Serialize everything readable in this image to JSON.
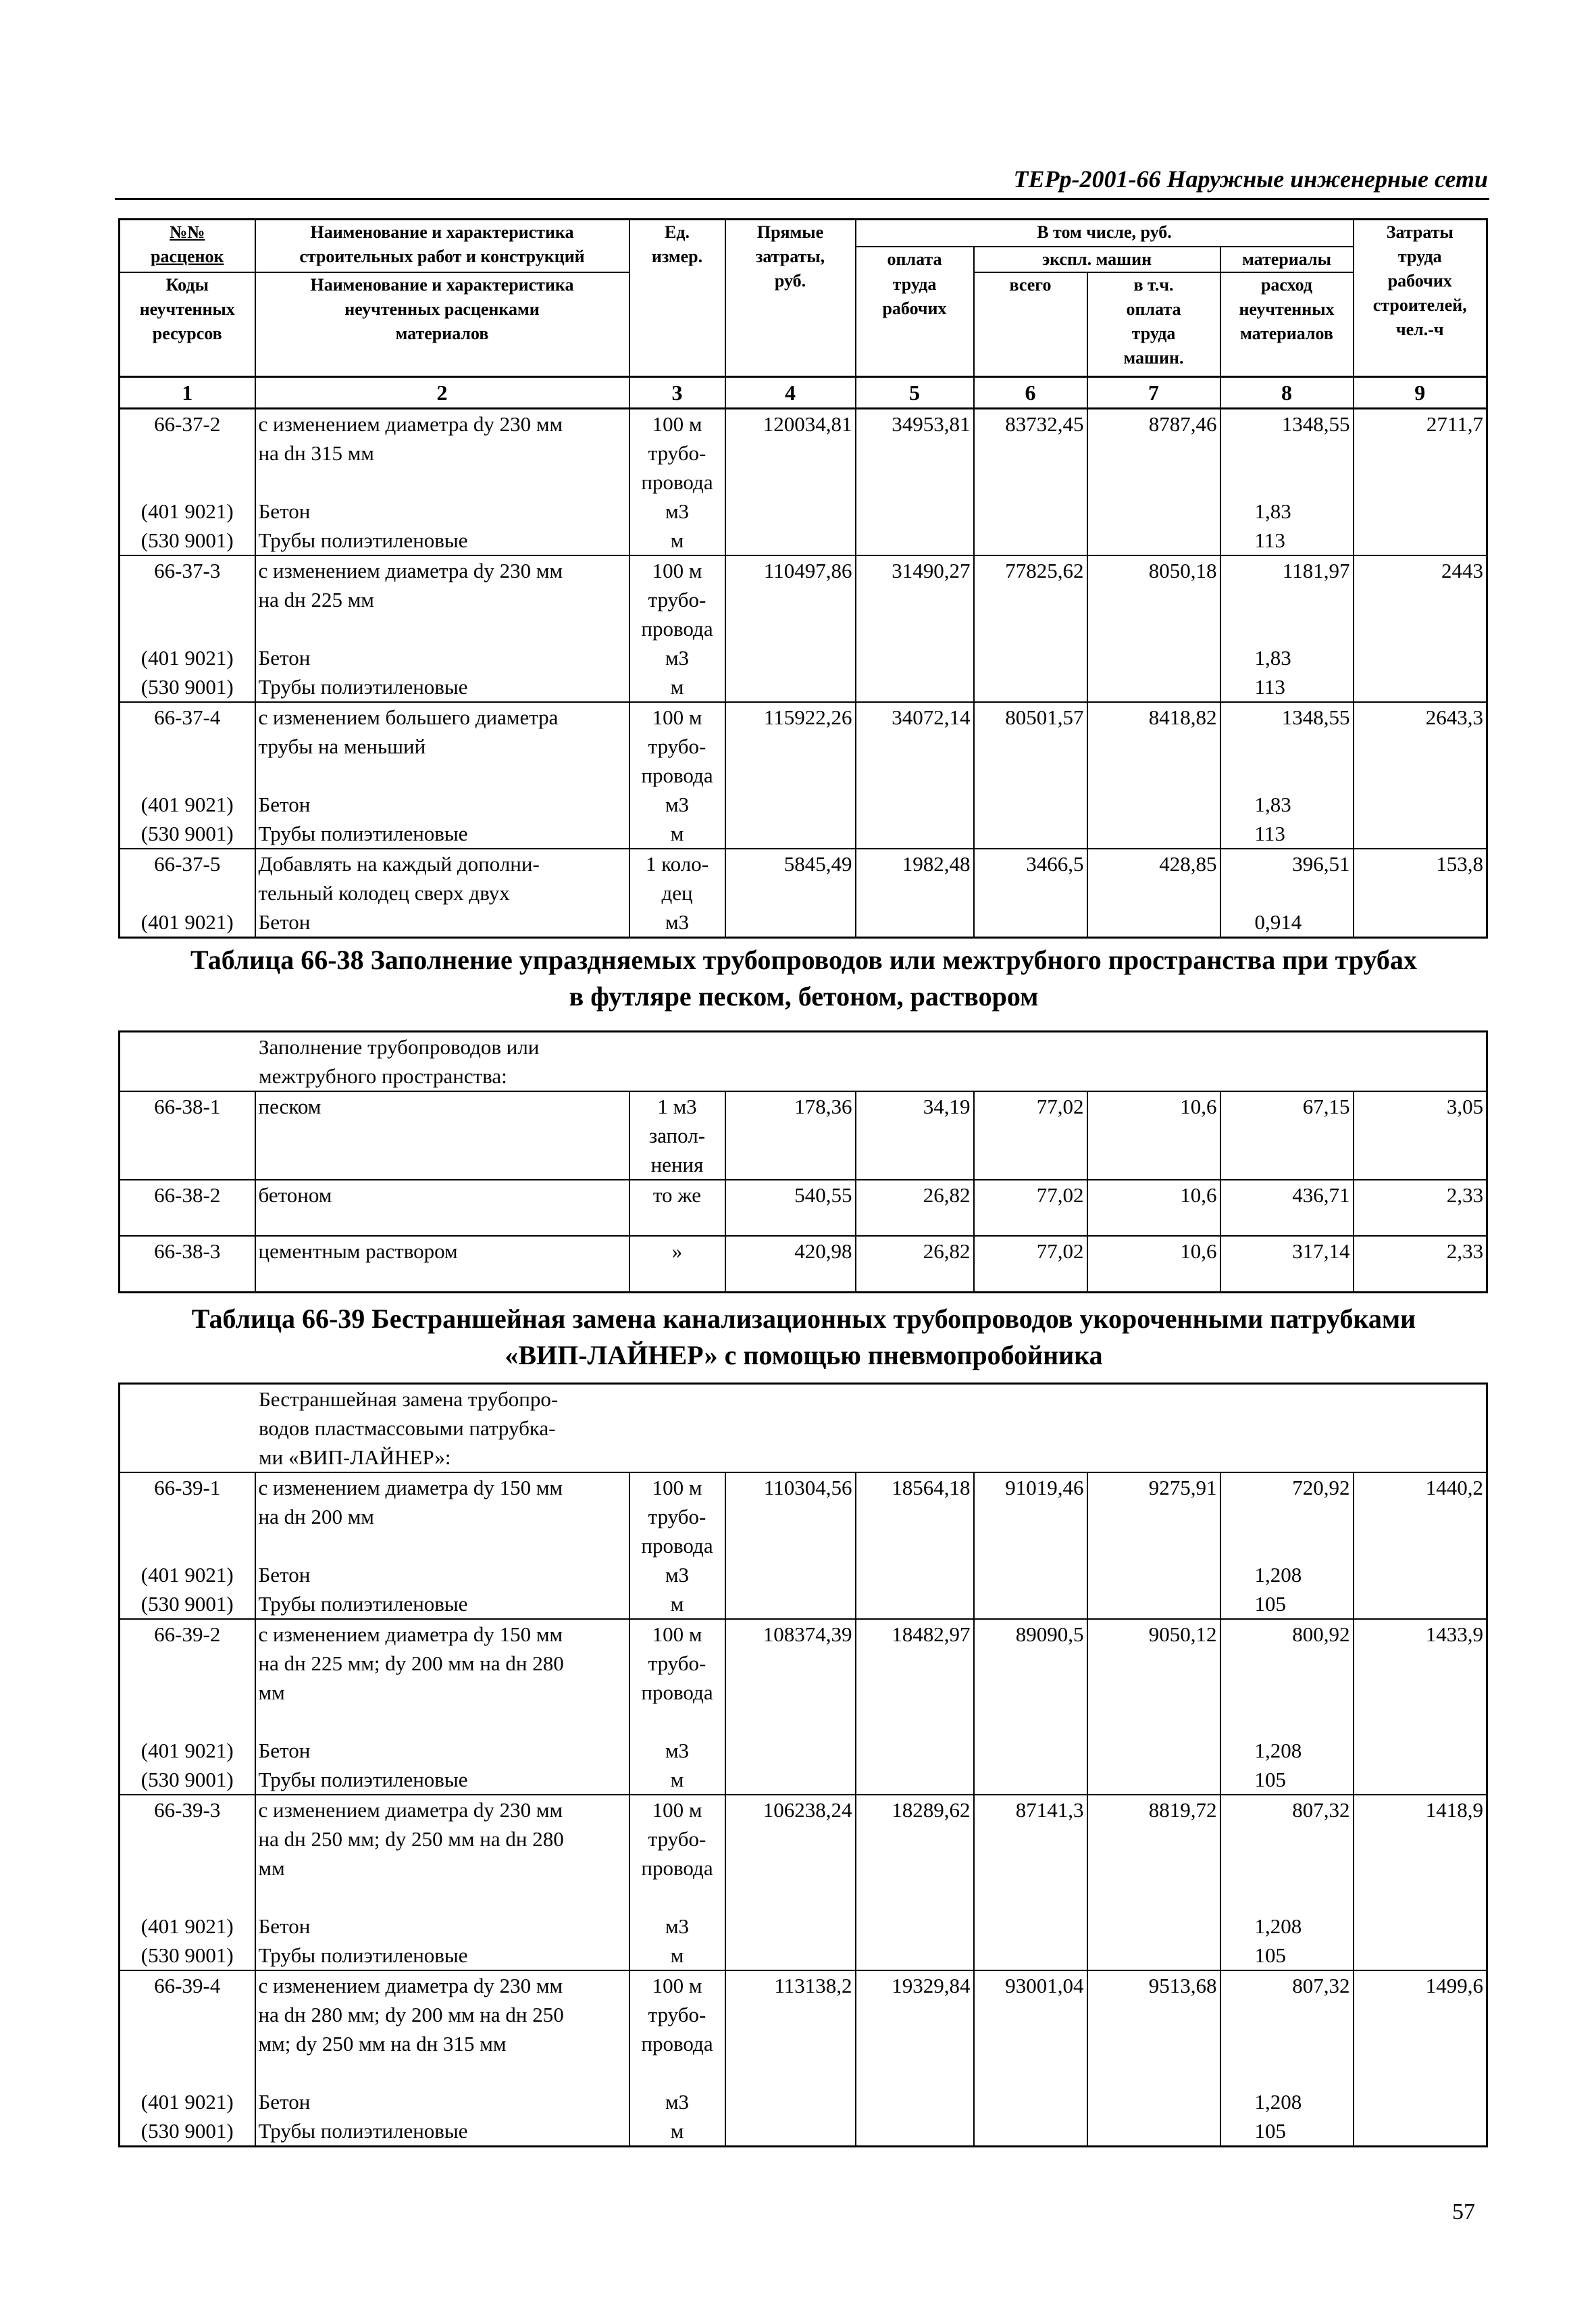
{
  "running_header": "ТЕРр-2001-66  Наружные инженерные сети",
  "page_number": "57",
  "header": {
    "col1_top": "№№\nрасценок",
    "col2_top": "Наименование и характеристика\nстроительных работ и конструкций",
    "col3": "Ед.\nизмер.",
    "col4": "Прямые\nзатраты,\nруб.",
    "incl": "В том числе, руб.",
    "labor_pay_top": "оплата",
    "machines": "экспл. машин",
    "materials": "материалы",
    "col9": "Затраты\nтруда\nрабочих\nстроителей,\nчел.-ч",
    "col1_bottom": "Коды\nнеучтенных\nресурсов",
    "col2_bottom": "Наименование и характеристика\nнеучтенных расценками\nматериалов",
    "labor_pay_bottom": "труда\nрабочих",
    "machines_total": "всего",
    "machines_labor": "в т.ч.\nоплата\nтруда\nмашин.",
    "materials_use": "расход\nнеучтенных\nматериалов",
    "numbers": [
      "1",
      "2",
      "3",
      "4",
      "5",
      "6",
      "7",
      "8",
      "9"
    ]
  },
  "table1": {
    "rows": [
      {
        "code": "66-37-2",
        "desc": "с изменением диаметра dу 230 мм\nна dн 315 мм",
        "unit": "100 м\nтрубо-\nпровода",
        "vals": [
          "120034,81",
          "34953,81",
          "83732,45",
          "8787,46",
          "1348,55",
          "2711,7"
        ],
        "res": [
          {
            "code": "(401 9021)",
            "name": "Бетон",
            "unit": "м3",
            "qty": "1,83"
          },
          {
            "code": "(530 9001)",
            "name": "Трубы полиэтиленовые",
            "unit": "м",
            "qty": "113"
          }
        ]
      },
      {
        "code": "66-37-3",
        "desc": "с изменением диаметра dу 230 мм\nна dн 225 мм",
        "unit": "100 м\nтрубо-\nпровода",
        "vals": [
          "110497,86",
          "31490,27",
          "77825,62",
          "8050,18",
          "1181,97",
          "2443"
        ],
        "res": [
          {
            "code": "(401 9021)",
            "name": "Бетон",
            "unit": "м3",
            "qty": "1,83"
          },
          {
            "code": "(530 9001)",
            "name": "Трубы полиэтиленовые",
            "unit": "м",
            "qty": "113"
          }
        ]
      },
      {
        "code": "66-37-4",
        "desc": "с изменением большего диаметра\nтрубы на меньший",
        "unit": "100 м\nтрубо-\nпровода",
        "vals": [
          "115922,26",
          "34072,14",
          "80501,57",
          "8418,82",
          "1348,55",
          "2643,3"
        ],
        "res": [
          {
            "code": "(401 9021)",
            "name": "Бетон",
            "unit": "м3",
            "qty": "1,83"
          },
          {
            "code": "(530 9001)",
            "name": "Трубы полиэтиленовые",
            "unit": "м",
            "qty": "113"
          }
        ]
      },
      {
        "code": "66-37-5",
        "desc": "Добавлять на каждый дополни-\nтельный колодец сверх двух",
        "unit": "1 коло-\nдец",
        "vals": [
          "5845,49",
          "1982,48",
          "3466,5",
          "428,85",
          "396,51",
          "153,8"
        ],
        "res": [
          {
            "code": "(401 9021)",
            "name": "Бетон",
            "unit": "м3",
            "qty": "0,914"
          }
        ]
      }
    ]
  },
  "table2": {
    "title": "Таблица 66-38 Заполнение упраздняемых трубопроводов или межтрубного пространства при трубах\nв футляре песком, бетоном, раствором",
    "intro": "Заполнение трубопроводов или\nмежтрубного пространства:",
    "rows": [
      {
        "code": "66-38-1",
        "desc": "песком",
        "unit": "1 м3\nзапол-\nнения",
        "vals": [
          "178,36",
          "34,19",
          "77,02",
          "10,6",
          "67,15",
          "3,05"
        ],
        "res": []
      },
      {
        "code": "66-38-2",
        "desc": "бетоном",
        "unit": "то же",
        "vals": [
          "540,55",
          "26,82",
          "77,02",
          "10,6",
          "436,71",
          "2,33"
        ],
        "res": []
      },
      {
        "code": "66-38-3",
        "desc": "цементным раствором",
        "unit": "»",
        "vals": [
          "420,98",
          "26,82",
          "77,02",
          "10,6",
          "317,14",
          "2,33"
        ],
        "res": []
      }
    ]
  },
  "table3": {
    "title": "Таблица 66-39 Бестраншейная замена канализационных трубопроводов укороченными патрубками\n«ВИП-ЛАЙНЕР» с помощью пневмопробойника",
    "intro": "Бестраншейная замена трубопро-\nводов пластмассовыми патрубка-\nми «ВИП-ЛАЙНЕР»:",
    "rows": [
      {
        "code": "66-39-1",
        "desc": "с изменением диаметра dу 150 мм\nна dн 200 мм",
        "unit": "100 м\nтрубо-\nпровода",
        "vals": [
          "110304,56",
          "18564,18",
          "91019,46",
          "9275,91",
          "720,92",
          "1440,2"
        ],
        "res": [
          {
            "code": "(401 9021)",
            "name": "Бетон",
            "unit": "м3",
            "qty": "1,208"
          },
          {
            "code": "(530 9001)",
            "name": "Трубы полиэтиленовые",
            "unit": "м",
            "qty": "105"
          }
        ]
      },
      {
        "code": "66-39-2",
        "desc": "с изменением диаметра dу 150 мм\nна dн 225 мм; dу 200 мм на dн 280\nмм",
        "unit": "100 м\nтрубо-\nпровода",
        "vals": [
          "108374,39",
          "18482,97",
          "89090,5",
          "9050,12",
          "800,92",
          "1433,9"
        ],
        "res": [
          {
            "code": "(401 9021)",
            "name": "Бетон",
            "unit": "м3",
            "qty": "1,208"
          },
          {
            "code": "(530 9001)",
            "name": "Трубы полиэтиленовые",
            "unit": "м",
            "qty": "105"
          }
        ]
      },
      {
        "code": "66-39-3",
        "desc": "с изменением диаметра dу 230 мм\nна dн 250 мм; dу 250 мм на dн 280\nмм",
        "unit": "100 м\nтрубо-\nпровода",
        "vals": [
          "106238,24",
          "18289,62",
          "87141,3",
          "8819,72",
          "807,32",
          "1418,9"
        ],
        "res": [
          {
            "code": "(401 9021)",
            "name": "Бетон",
            "unit": "м3",
            "qty": "1,208"
          },
          {
            "code": "(530 9001)",
            "name": "Трубы полиэтиленовые",
            "unit": "м",
            "qty": "105"
          }
        ]
      },
      {
        "code": "66-39-4",
        "desc": "с изменением диаметра dу 230 мм\nна dн 280 мм; dу 200 мм на dн 250\nмм; dу 250 мм на dн 315 мм",
        "unit": "100 м\nтрубо-\nпровода",
        "vals": [
          "113138,2",
          "19329,84",
          "93001,04",
          "9513,68",
          "807,32",
          "1499,6"
        ],
        "res": [
          {
            "code": "(401 9021)",
            "name": "Бетон",
            "unit": "м3",
            "qty": "1,208"
          },
          {
            "code": "(530 9001)",
            "name": "Трубы полиэтиленовые",
            "unit": "м",
            "qty": "105"
          }
        ]
      }
    ]
  }
}
